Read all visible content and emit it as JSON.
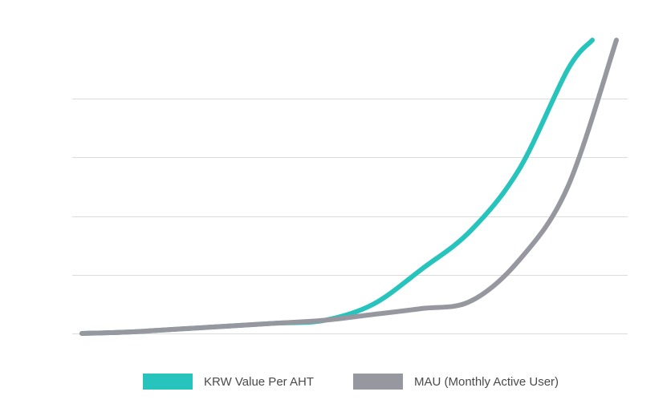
{
  "chart_data": {
    "type": "line",
    "title": "",
    "xlabel": "",
    "ylabel": "",
    "grid": true,
    "legend_position": "bottom",
    "x": [
      0,
      1,
      2,
      3,
      4,
      5,
      6,
      7,
      8,
      9,
      10,
      11
    ],
    "xlim": [
      0,
      11
    ],
    "ylim": [
      0,
      100
    ],
    "y_gridlines": [
      0,
      20,
      40,
      60,
      80
    ],
    "series": [
      {
        "name": "KRW Value Per AHT",
        "color": "#26c4bc",
        "values": [
          0,
          0.5,
          1.5,
          2.5,
          3.5,
          4.5,
          10,
          22,
          35,
          56,
          90,
          100
        ]
      },
      {
        "name": "MAU (Monthly Active User)",
        "color": "#97979f",
        "values": [
          0,
          0.5,
          1.5,
          2.5,
          3.5,
          4.5,
          6.5,
          8.5,
          11,
          25,
          50,
          100
        ]
      }
    ]
  }
}
